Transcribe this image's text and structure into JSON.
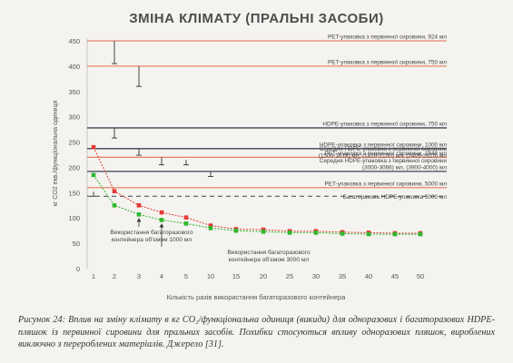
{
  "title": "ЗМІНА КЛІМАТУ (ПРАЛЬНІ ЗАСОБИ)",
  "caption": "Рисунок 24: Вплив на зміну клімату в кг CO₂/функціональна одиниця (викиди) для одноразових і багаторазових HDPE-пляшок із первинної сировини для пральних засобів. Похибки стосуються впливу одноразових пляшок, вироблених виключно з перероблених матеріалів. Джерело [31].",
  "chart_data": {
    "type": "line",
    "xlabel": "Кількість разів використання багаторазового контейнера",
    "ylabel": "кг CO2 екв./функціональна одиниця",
    "ylim": [
      0,
      475
    ],
    "yticks": [
      0,
      50,
      100,
      150,
      200,
      250,
      300,
      350,
      400,
      450
    ],
    "x_categories": [
      "1",
      "2",
      "3",
      "4",
      "5",
      "10",
      "15",
      "20",
      "25",
      "30",
      "35",
      "40",
      "45",
      "50"
    ],
    "grid": false,
    "reference_lines": [
      {
        "label": "PET-упаковка з первинної сировини, 924 мл",
        "value": 450,
        "color": "#e8866d",
        "style": "solid",
        "error_bar": {
          "x": "2",
          "low": 405,
          "high": 450
        }
      },
      {
        "label": "PET-упаковка з первинної сировини, 750 мл",
        "value": 400,
        "color": "#e8866d",
        "style": "solid",
        "error_bar": {
          "x": "3",
          "low": 360,
          "high": 400
        }
      },
      {
        "label": "HDPE-упаковка з первинної сировини, 750 мл",
        "value": 278,
        "color": "#3f4356",
        "style": "solid",
        "error_bar": {
          "x": "2",
          "low": 258,
          "high": 278
        }
      },
      {
        "label": "HDPE-упаковка з первинної сировини, 1000 мл",
        "value": 237,
        "color": "#3f4356",
        "style": "solid",
        "error_bar": {
          "x": "3",
          "low": 224,
          "high": 237
        }
      },
      {
        "label": "PET-упаковка з первинної сировини, 1848 мл",
        "value": 220,
        "color": "#e8866d",
        "style": "solid",
        "error_bar": {
          "x": "4",
          "low": 205,
          "high": 220
        }
      },
      {
        "label": "Середня HDPE-упаковка з первинної сировини (1500-1518) мл, (1820-2100) мл, (2409-2625) мл",
        "value": 215,
        "color": "#3f4356",
        "style": "none",
        "error_bar": {
          "x": "5",
          "low": 205,
          "high": 215
        }
      },
      {
        "label": "Середня HDPE-упаковка з первинної сировини (3000-3066) мл, (3900-4000) мл",
        "value": 192,
        "color": "#3f4356",
        "style": "solid",
        "error_bar": {
          "x": "10",
          "low": 182,
          "high": 192
        }
      },
      {
        "label": "PET-упаковка з первинної сировини, 5000 мл",
        "value": 160,
        "color": "#e8866d",
        "style": "solid",
        "error_bar": {
          "x": "1",
          "low": 143,
          "high": 152
        }
      },
      {
        "label": "Багаторазова HDPE-упаковка 5000 мл",
        "value": 143,
        "color": "#3f4356",
        "style": "dashed"
      }
    ],
    "series": [
      {
        "color": "#e53935",
        "values": [
          240,
          153,
          125,
          111,
          101,
          85,
          78,
          77,
          74,
          74,
          72,
          71,
          70,
          70
        ]
      },
      {
        "color": "#2fb82f",
        "values": [
          185,
          125,
          107,
          96,
          89,
          80,
          75,
          73,
          71,
          71,
          69,
          68,
          68,
          68
        ]
      }
    ],
    "annotations": [
      {
        "text": [
          "Використання багаторазового",
          "контейнера об'ємом 1000 мл"
        ],
        "target_x": "3",
        "target_y": 107
      },
      {
        "text": [
          "Використання багаторазового",
          "контейнера об'ємом 3000 мл"
        ],
        "target_x": "4",
        "target_y": 96
      }
    ]
  }
}
